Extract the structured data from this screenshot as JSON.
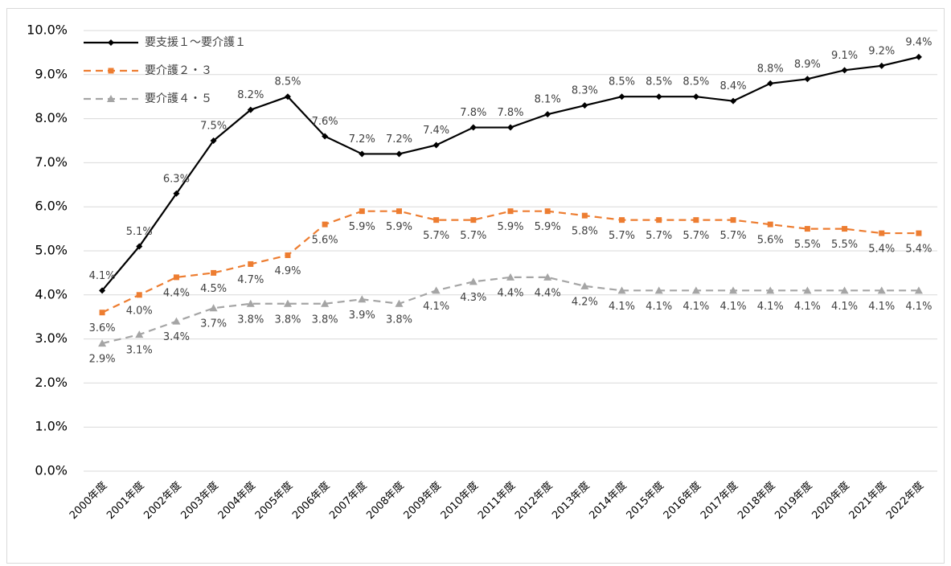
{
  "chart_data": {
    "type": "line",
    "categories": [
      "2000年度",
      "2001年度",
      "2002年度",
      "2003年度",
      "2004年度",
      "2005年度",
      "2006年度",
      "2007年度",
      "2008年度",
      "2009年度",
      "2010年度",
      "2011年度",
      "2012年度",
      "2013年度",
      "2014年度",
      "2015年度",
      "2016年度",
      "2017年度",
      "2018年度",
      "2019年度",
      "2020年度",
      "2021年度",
      "2022年度"
    ],
    "series": [
      {
        "name": "要支援１～要介護１",
        "color": "#000000",
        "marker": "diamond",
        "line_style": "solid",
        "label_position": "above",
        "values": [
          4.1,
          5.1,
          6.3,
          7.5,
          8.2,
          8.5,
          7.6,
          7.2,
          7.2,
          7.4,
          7.8,
          7.8,
          8.1,
          8.3,
          8.5,
          8.5,
          8.5,
          8.4,
          8.8,
          8.9,
          9.1,
          9.2,
          9.4
        ],
        "value_labels": [
          "4.1%",
          "5.1%",
          "6.3%",
          "7.5%",
          "8.2%",
          "8.5%",
          "7.6%",
          "7.2%",
          "7.2%",
          "7.4%",
          "7.8%",
          "7.8%",
          "8.1%",
          "8.3%",
          "8.5%",
          "8.5%",
          "8.5%",
          "8.4%",
          "8.8%",
          "8.9%",
          "9.1%",
          "9.2%",
          "9.4%"
        ]
      },
      {
        "name": "要介護２・３",
        "color": "#ed7d31",
        "marker": "square",
        "line_style": "dashed",
        "label_position": "below",
        "values": [
          3.6,
          4.0,
          4.4,
          4.5,
          4.7,
          4.9,
          5.6,
          5.9,
          5.9,
          5.7,
          5.7,
          5.9,
          5.9,
          5.8,
          5.7,
          5.7,
          5.7,
          5.7,
          5.6,
          5.5,
          5.5,
          5.4,
          5.4
        ],
        "value_labels": [
          "3.6%",
          "4.0%",
          "4.4%",
          "4.5%",
          "4.7%",
          "4.9%",
          "5.6%",
          "5.9%",
          "5.9%",
          "5.7%",
          "5.7%",
          "5.9%",
          "5.9%",
          "5.8%",
          "5.7%",
          "5.7%",
          "5.7%",
          "5.7%",
          "5.6%",
          "5.5%",
          "5.5%",
          "5.4%",
          "5.4%"
        ]
      },
      {
        "name": "要介護４・５",
        "color": "#a5a5a5",
        "marker": "triangle",
        "line_style": "dashed",
        "label_position": "below",
        "values": [
          2.9,
          3.1,
          3.4,
          3.7,
          3.8,
          3.8,
          3.8,
          3.9,
          3.8,
          4.1,
          4.3,
          4.4,
          4.4,
          4.2,
          4.1,
          4.1,
          4.1,
          4.1,
          4.1,
          4.1,
          4.1,
          4.1,
          4.1
        ],
        "value_labels": [
          "2.9%",
          "3.1%",
          "3.4%",
          "3.7%",
          "3.8%",
          "3.8%",
          "3.8%",
          "3.9%",
          "3.8%",
          "4.1%",
          "4.3%",
          "4.4%",
          "4.4%",
          "4.2%",
          "4.1%",
          "4.1%",
          "4.1%",
          "4.1%",
          "4.1%",
          "4.1%",
          "4.1%",
          "4.1%",
          "4.1%"
        ]
      }
    ],
    "ylim": [
      0,
      10
    ],
    "yticks": [
      {
        "value": 0,
        "label": "0.0%"
      },
      {
        "value": 1,
        "label": "1.0%"
      },
      {
        "value": 2,
        "label": "2.0%"
      },
      {
        "value": 3,
        "label": "3.0%"
      },
      {
        "value": 4,
        "label": "4.0%"
      },
      {
        "value": 5,
        "label": "5.0%"
      },
      {
        "value": 6,
        "label": "6.0%"
      },
      {
        "value": 7,
        "label": "7.0%"
      },
      {
        "value": 8,
        "label": "8.0%"
      },
      {
        "value": 9,
        "label": "9.0%"
      },
      {
        "value": 10,
        "label": "10.0%"
      }
    ],
    "grid": true,
    "legend": "upper left"
  }
}
